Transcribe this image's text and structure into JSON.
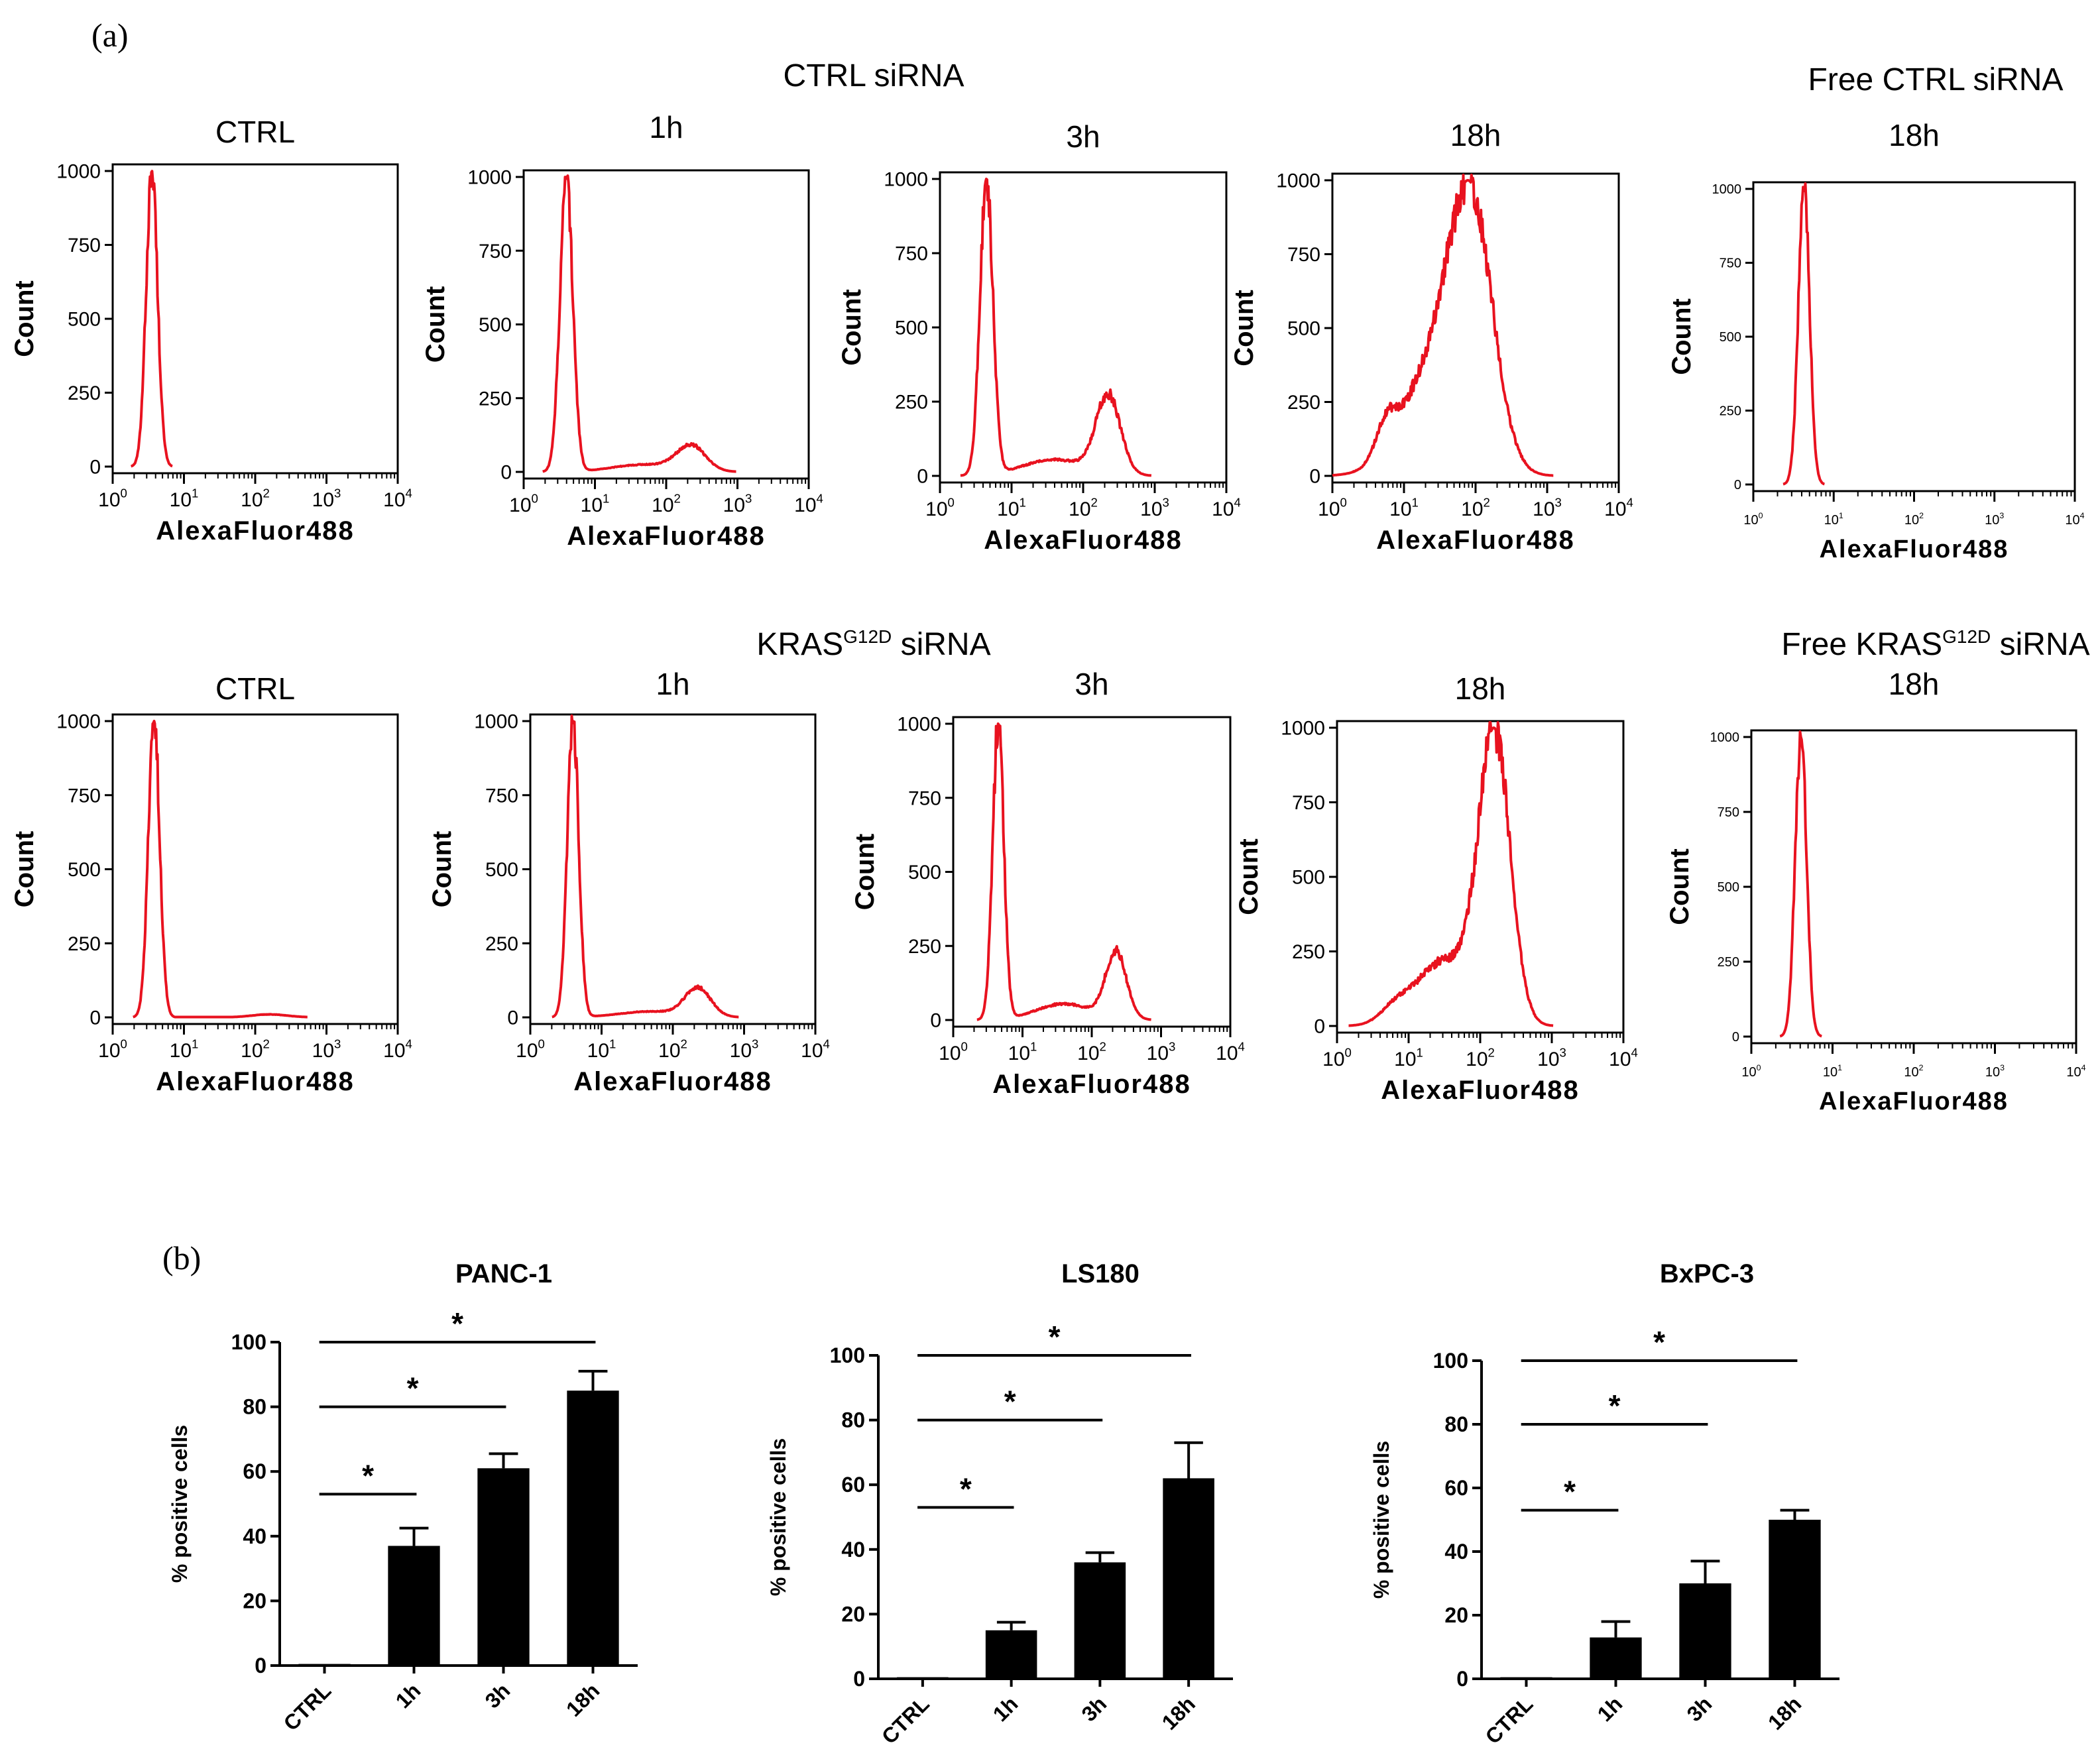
{
  "panel_labels": {
    "a": "(a)",
    "b": "(b)"
  },
  "headers": {
    "row1_group": "CTRL siRNA",
    "row1_free": "Free CTRL siRNA",
    "row2_group_pre": "KRAS",
    "row2_group_sup": "G12D",
    "row2_group_post": " siRNA",
    "row2_free_pre": "Free KRAS",
    "row2_free_sup": "G12D",
    "row2_free_post": " siRNA"
  },
  "histograms": {
    "x_label": "AlexaFluor488",
    "y_label": "Count",
    "y_ticks": [
      0,
      250,
      500,
      750,
      1000
    ],
    "x_tick_base": "10",
    "x_tick_exponents": [
      "0",
      "1",
      "2",
      "3",
      "4"
    ],
    "line_color": "#e8121f",
    "panels": [
      {
        "title": "CTRL",
        "peaks": [
          {
            "m": 0.55,
            "s": 0.08,
            "a": 1000
          }
        ]
      },
      {
        "title": "1h",
        "peaks": [
          {
            "m": 0.6,
            "s": 0.09,
            "a": 1000
          },
          {
            "m": 2.35,
            "s": 0.2,
            "a": 85
          },
          {
            "m": 1.7,
            "s": 0.45,
            "a": 25
          }
        ]
      },
      {
        "title": "3h",
        "peaks": [
          {
            "m": 0.65,
            "s": 0.09,
            "a": 1000
          },
          {
            "m": 2.35,
            "s": 0.17,
            "a": 265
          },
          {
            "m": 1.6,
            "s": 0.45,
            "a": 55
          }
        ]
      },
      {
        "title": "18h",
        "peaks": [
          {
            "m": 1.95,
            "s": 0.3,
            "a": 900
          },
          {
            "m": 1.45,
            "s": 0.45,
            "a": 420
          },
          {
            "m": 0.75,
            "s": 0.14,
            "a": 120
          }
        ]
      },
      {
        "title": "18h",
        "peaks": [
          {
            "m": 0.63,
            "s": 0.07,
            "a": 1000
          }
        ]
      },
      {
        "title": "CTRL",
        "peaks": [
          {
            "m": 0.58,
            "s": 0.08,
            "a": 1000
          },
          {
            "m": 2.2,
            "s": 0.25,
            "a": 10
          }
        ]
      },
      {
        "title": "1h",
        "peaks": [
          {
            "m": 0.6,
            "s": 0.08,
            "a": 1000
          },
          {
            "m": 2.35,
            "s": 0.18,
            "a": 95
          },
          {
            "m": 1.7,
            "s": 0.45,
            "a": 20
          }
        ]
      },
      {
        "title": "3h",
        "peaks": [
          {
            "m": 0.65,
            "s": 0.08,
            "a": 1000
          },
          {
            "m": 2.35,
            "s": 0.15,
            "a": 225
          },
          {
            "m": 1.6,
            "s": 0.4,
            "a": 55
          }
        ]
      },
      {
        "title": "18h",
        "peaks": [
          {
            "m": 2.2,
            "s": 0.22,
            "a": 1000
          },
          {
            "m": 1.5,
            "s": 0.4,
            "a": 230
          },
          {
            "m": 0.8,
            "s": 0.2,
            "a": 45
          }
        ]
      },
      {
        "title": "18h",
        "peaks": [
          {
            "m": 0.61,
            "s": 0.07,
            "a": 1000
          }
        ]
      }
    ]
  },
  "chart_data": [
    {
      "type": "bar",
      "title": "PANC-1",
      "ylabel": "% positive cells",
      "categories": [
        "CTRL",
        "1h",
        "3h",
        "18h"
      ],
      "values": [
        0.5,
        37,
        61,
        85
      ],
      "errors": [
        0,
        5.5,
        4.5,
        6
      ],
      "ylim": [
        0,
        100
      ],
      "yticks": [
        0,
        20,
        40,
        60,
        80,
        100
      ],
      "significance": [
        {
          "from": "CTRL",
          "to": "1h",
          "y": 53,
          "label": "*"
        },
        {
          "from": "CTRL",
          "to": "3h",
          "y": 80,
          "label": "*"
        },
        {
          "from": "CTRL",
          "to": "18h",
          "y": 100,
          "label": "*"
        }
      ]
    },
    {
      "type": "bar",
      "title": "LS180",
      "ylabel": "% positive cells",
      "categories": [
        "CTRL",
        "1h",
        "3h",
        "18h"
      ],
      "values": [
        0.5,
        15,
        36,
        62
      ],
      "errors": [
        0,
        2.5,
        3,
        11
      ],
      "ylim": [
        0,
        100
      ],
      "yticks": [
        0,
        20,
        40,
        60,
        80,
        100
      ],
      "significance": [
        {
          "from": "CTRL",
          "to": "1h",
          "y": 53,
          "label": "*"
        },
        {
          "from": "CTRL",
          "to": "3h",
          "y": 80,
          "label": "*"
        },
        {
          "from": "CTRL",
          "to": "18h",
          "y": 100,
          "label": "*"
        }
      ]
    },
    {
      "type": "bar",
      "title": "BxPC-3",
      "ylabel": "% positive cells",
      "categories": [
        "CTRL",
        "1h",
        "3h",
        "18h"
      ],
      "values": [
        0.5,
        13,
        30,
        50
      ],
      "errors": [
        0,
        5,
        7,
        3
      ],
      "ylim": [
        0,
        100
      ],
      "yticks": [
        0,
        20,
        40,
        60,
        80,
        100
      ],
      "significance": [
        {
          "from": "CTRL",
          "to": "1h",
          "y": 53,
          "label": "*"
        },
        {
          "from": "CTRL",
          "to": "3h",
          "y": 80,
          "label": "*"
        },
        {
          "from": "CTRL",
          "to": "18h",
          "y": 100,
          "label": "*"
        }
      ]
    }
  ]
}
